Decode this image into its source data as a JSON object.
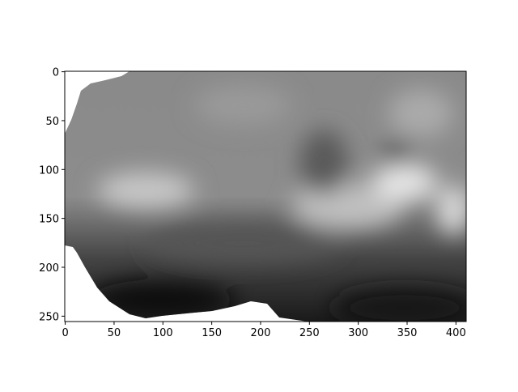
{
  "chart_data": {
    "type": "image",
    "xlim": [
      -0.5,
      410.5
    ],
    "ylim": [
      255.5,
      -0.5
    ],
    "xticks": [
      0,
      50,
      100,
      150,
      200,
      250,
      300,
      350,
      400
    ],
    "yticks": [
      0,
      50,
      100,
      150,
      200,
      250
    ]
  }
}
